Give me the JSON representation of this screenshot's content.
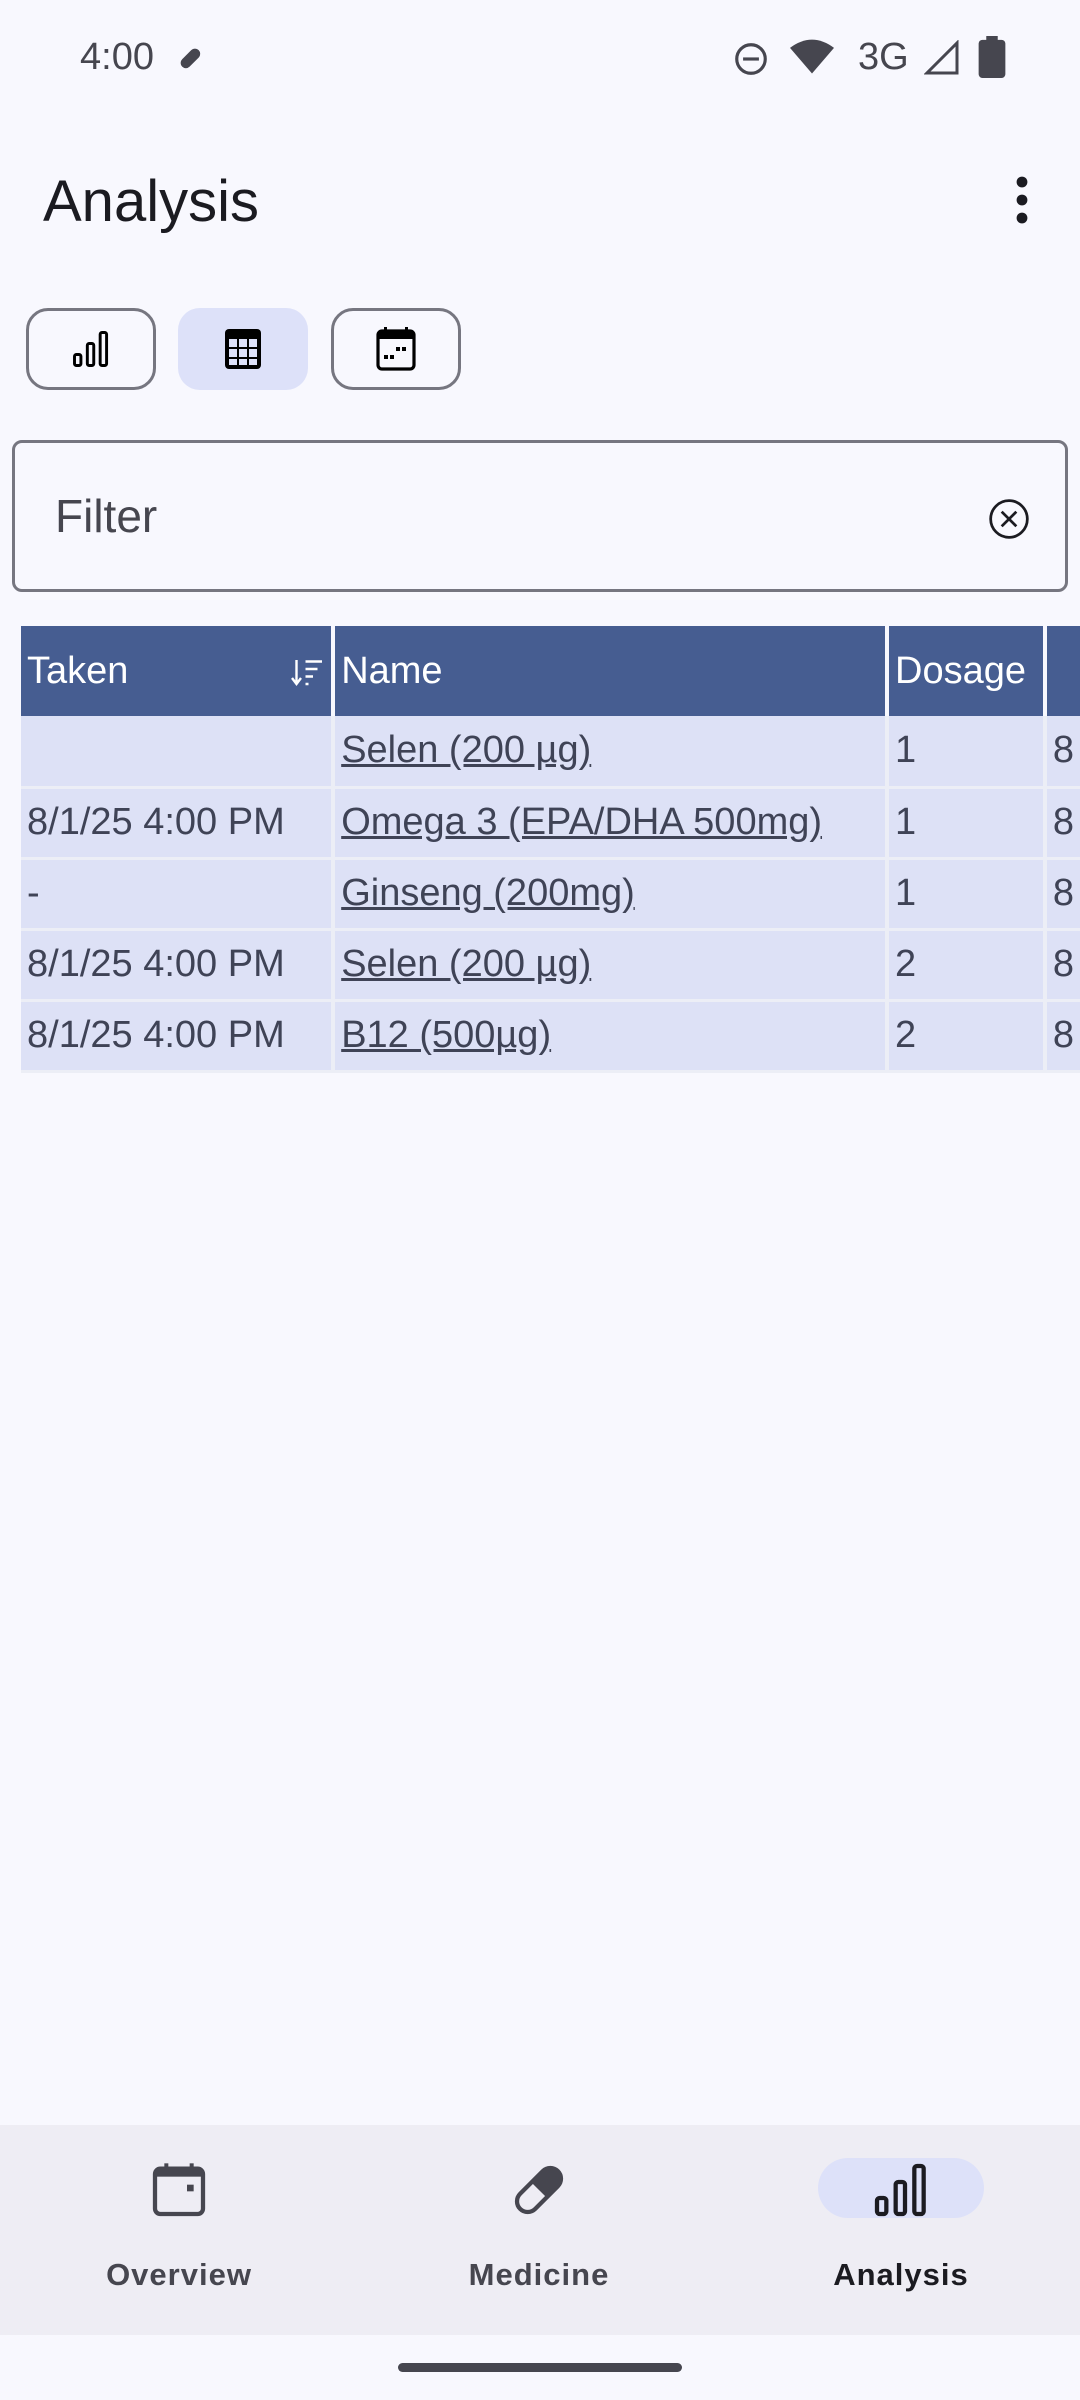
{
  "status_bar": {
    "time": "4:00",
    "network": "3G"
  },
  "header": {
    "title": "Analysis"
  },
  "view_toggle": {
    "options": [
      "chart",
      "table",
      "calendar"
    ],
    "selected": "table"
  },
  "filter": {
    "placeholder": "Filter",
    "value": ""
  },
  "table": {
    "columns": [
      "Taken",
      "Name",
      "Dosage",
      ""
    ],
    "sorted_column": "Taken",
    "rows": [
      {
        "taken": "",
        "name": "Selen (200 µg)",
        "dosage": "1",
        "next": "8"
      },
      {
        "taken": "8/1/25 4:00 PM",
        "name": "Omega 3 (EPA/DHA 500mg)",
        "dosage": "1",
        "next": "8"
      },
      {
        "taken": "-",
        "name": "Ginseng (200mg)",
        "dosage": "1",
        "next": "8"
      },
      {
        "taken": "8/1/25 4:00 PM",
        "name": "Selen (200 µg)",
        "dosage": "2",
        "next": "8"
      },
      {
        "taken": "8/1/25 4:00 PM",
        "name": "B12 (500µg)",
        "dosage": "2",
        "next": "8"
      }
    ]
  },
  "bottom_nav": {
    "items": [
      {
        "label": "Overview"
      },
      {
        "label": "Medicine"
      },
      {
        "label": "Analysis"
      }
    ],
    "selected": "Analysis"
  },
  "colors": {
    "header": "#465d91",
    "row": "#dde1f6",
    "accent_container": "#dde1f9",
    "background": "#f8f8fe"
  }
}
